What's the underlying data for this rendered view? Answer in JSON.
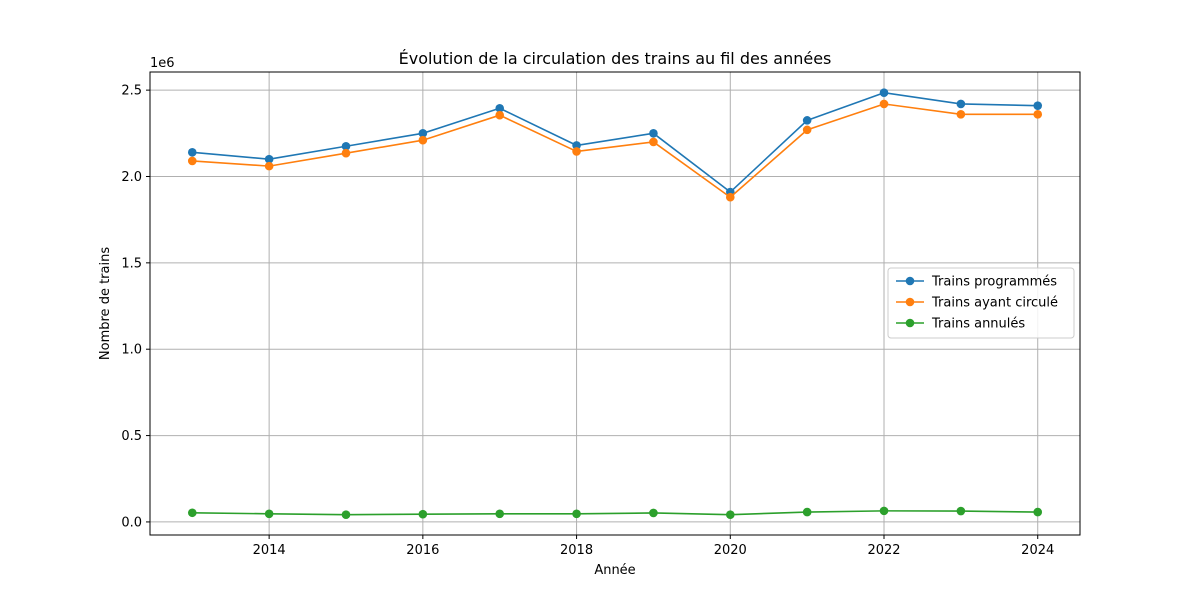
{
  "chart_data": {
    "type": "line",
    "title": "Évolution de la circulation des trains au fil des années",
    "xlabel": "Année",
    "ylabel": "Nombre de trains",
    "y_offset_label": "1e6",
    "x": [
      2013,
      2014,
      2015,
      2016,
      2017,
      2018,
      2019,
      2020,
      2021,
      2022,
      2023,
      2024
    ],
    "x_ticks": [
      "2014",
      "2016",
      "2018",
      "2020",
      "2022",
      "2024"
    ],
    "y_ticks": [
      "0.0",
      "0.5",
      "1.0",
      "1.5",
      "2.0",
      "2.5"
    ],
    "xlim": [
      2012.45,
      2024.55
    ],
    "ylim": [
      -0.0757,
      2.605
    ],
    "y_unit": 1000000,
    "grid": true,
    "legend_position": "center-right",
    "series": [
      {
        "name": "Trains programmés",
        "color": "#1f77b4",
        "values": [
          2.14,
          2.1,
          2.175,
          2.25,
          2.395,
          2.18,
          2.25,
          1.91,
          2.325,
          2.485,
          2.42,
          2.41
        ]
      },
      {
        "name": "Trains ayant circulé",
        "color": "#ff7f0e",
        "values": [
          2.09,
          2.06,
          2.135,
          2.21,
          2.355,
          2.145,
          2.2,
          1.88,
          2.27,
          2.42,
          2.36,
          2.36
        ]
      },
      {
        "name": "Trains annulés",
        "color": "#2ca02c",
        "values": [
          0.053,
          0.047,
          0.042,
          0.045,
          0.047,
          0.047,
          0.052,
          0.042,
          0.057,
          0.064,
          0.063,
          0.057
        ]
      }
    ]
  }
}
